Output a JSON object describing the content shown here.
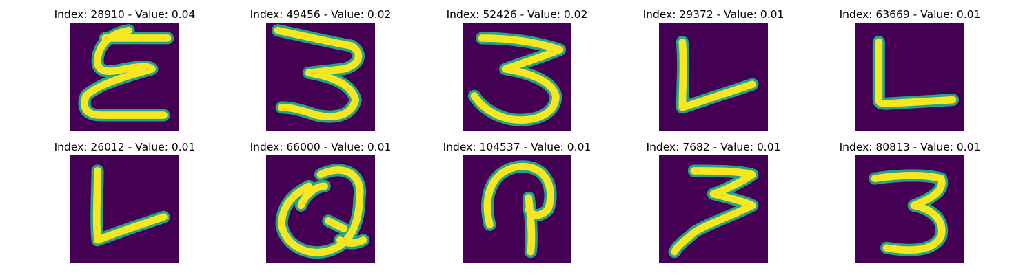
{
  "colors": {
    "background": "#440154",
    "stroke_edge": "#26a48a",
    "stroke_core": "#f8e621"
  },
  "panels": [
    {
      "title": "Index: 28910 - Value: 0.04",
      "glyph": "E"
    },
    {
      "title": "Index: 49456 - Value: 0.02",
      "glyph": "3"
    },
    {
      "title": "Index: 52426 - Value: 0.02",
      "glyph": "3"
    },
    {
      "title": "Index: 29372 - Value: 0.01",
      "glyph": "L"
    },
    {
      "title": "Index: 63669 - Value: 0.01",
      "glyph": "L"
    },
    {
      "title": "Index: 26012 - Value: 0.01",
      "glyph": "L"
    },
    {
      "title": "Index: 66000 - Value: 0.01",
      "glyph": "Q"
    },
    {
      "title": "Index: 104537 - Value: 0.01",
      "glyph": "P"
    },
    {
      "title": "Index: 7682 - Value: 0.01",
      "glyph": "3"
    },
    {
      "title": "Index: 80813 - Value: 0.01",
      "glyph": "3"
    }
  ]
}
